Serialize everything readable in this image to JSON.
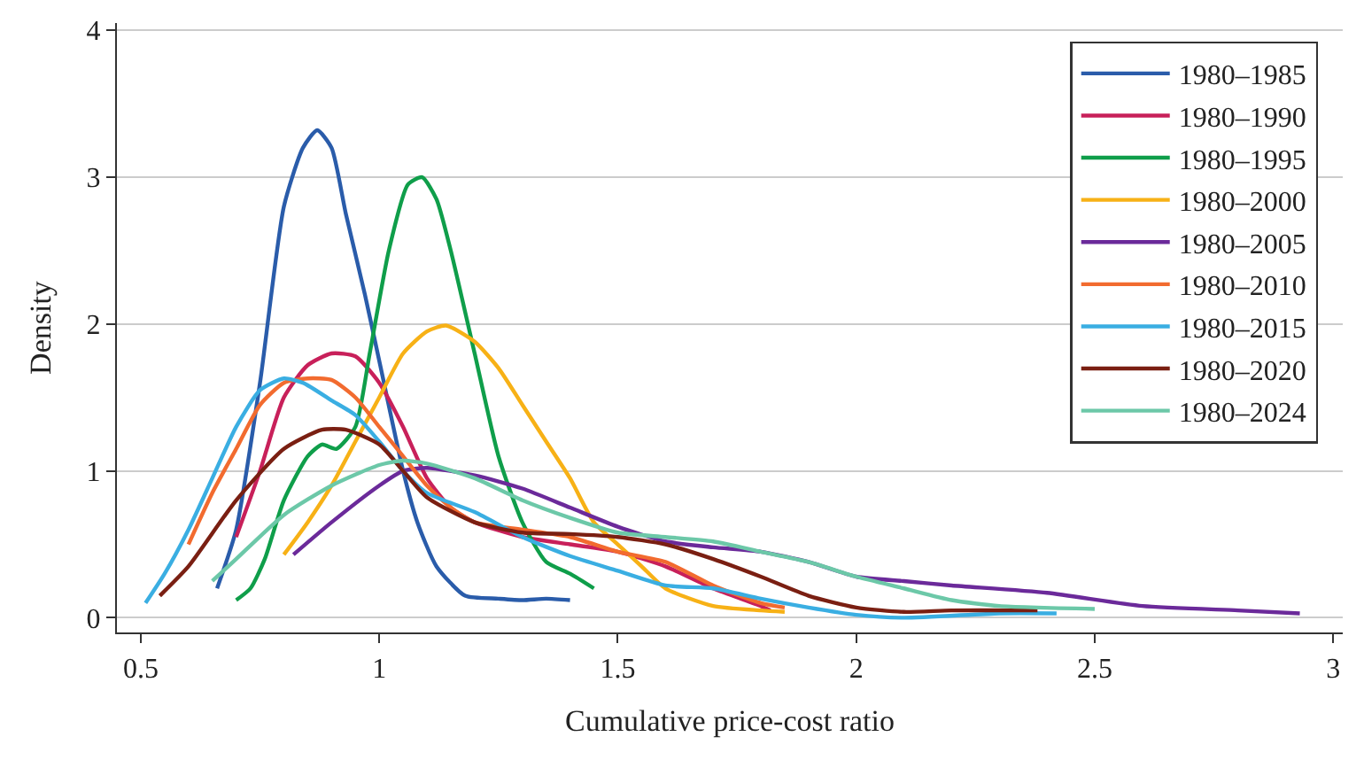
{
  "chart_data": {
    "type": "line",
    "xlabel": "Cumulative price-cost ratio",
    "ylabel": "Density",
    "xlim": [
      0.45,
      3.02
    ],
    "xticks": [
      0.5,
      1,
      1.5,
      2,
      2.5,
      3
    ],
    "ylim": [
      -0.1,
      4.05
    ],
    "yticks": [
      0,
      1,
      2,
      3,
      4
    ],
    "grid": "y",
    "legend": "top right",
    "marker": "none",
    "line_style": "solid",
    "series": [
      {
        "name": "1980–1985",
        "color": "#2a5caa",
        "x": [
          0.66,
          0.7,
          0.75,
          0.8,
          0.84,
          0.87,
          0.9,
          0.93,
          0.97,
          1.0,
          1.05,
          1.08,
          1.12,
          1.18,
          1.25,
          1.3,
          1.35,
          1.4
        ],
        "values": [
          0.2,
          0.6,
          1.6,
          2.8,
          3.2,
          3.32,
          3.2,
          2.75,
          2.2,
          1.75,
          1.0,
          0.65,
          0.35,
          0.15,
          0.13,
          0.12,
          0.13,
          0.12
        ]
      },
      {
        "name": "1980–1990",
        "color": "#c8205a",
        "x": [
          0.7,
          0.75,
          0.8,
          0.85,
          0.9,
          0.95,
          1.0,
          1.05,
          1.1,
          1.15,
          1.2,
          1.3,
          1.4,
          1.5,
          1.6,
          1.7,
          1.8,
          1.82
        ],
        "values": [
          0.55,
          1.0,
          1.5,
          1.72,
          1.8,
          1.78,
          1.6,
          1.3,
          0.95,
          0.75,
          0.65,
          0.55,
          0.5,
          0.45,
          0.35,
          0.2,
          0.08,
          0.05
        ]
      },
      {
        "name": "1980–1995",
        "color": "#0f9e4a",
        "x": [
          0.7,
          0.73,
          0.76,
          0.8,
          0.85,
          0.88,
          0.91,
          0.95,
          0.98,
          1.02,
          1.06,
          1.09,
          1.12,
          1.15,
          1.2,
          1.25,
          1.3,
          1.35,
          1.4,
          1.45
        ],
        "values": [
          0.12,
          0.2,
          0.4,
          0.8,
          1.1,
          1.18,
          1.15,
          1.3,
          1.8,
          2.5,
          2.95,
          3.0,
          2.85,
          2.5,
          1.8,
          1.1,
          0.65,
          0.38,
          0.3,
          0.2
        ]
      },
      {
        "name": "1980–2000",
        "color": "#f7b116",
        "x": [
          0.8,
          0.85,
          0.9,
          0.95,
          1.0,
          1.05,
          1.1,
          1.14,
          1.2,
          1.25,
          1.3,
          1.35,
          1.4,
          1.45,
          1.5,
          1.55,
          1.6,
          1.7,
          1.8,
          1.85
        ],
        "values": [
          0.43,
          0.65,
          0.9,
          1.2,
          1.5,
          1.8,
          1.95,
          1.99,
          1.88,
          1.7,
          1.45,
          1.2,
          0.95,
          0.65,
          0.5,
          0.35,
          0.2,
          0.08,
          0.05,
          0.04
        ]
      },
      {
        "name": "1980–2005",
        "color": "#6b2a9a",
        "x": [
          0.82,
          0.9,
          1.0,
          1.05,
          1.1,
          1.2,
          1.3,
          1.4,
          1.5,
          1.6,
          1.7,
          1.8,
          1.9,
          2.0,
          2.1,
          2.2,
          2.4,
          2.6,
          2.8,
          2.93
        ],
        "values": [
          0.43,
          0.65,
          0.9,
          1.0,
          1.02,
          0.97,
          0.88,
          0.75,
          0.62,
          0.52,
          0.48,
          0.45,
          0.38,
          0.28,
          0.25,
          0.22,
          0.17,
          0.08,
          0.05,
          0.03
        ]
      },
      {
        "name": "1980–2010",
        "color": "#f26b2f",
        "x": [
          0.6,
          0.65,
          0.7,
          0.75,
          0.8,
          0.85,
          0.9,
          0.95,
          1.0,
          1.05,
          1.1,
          1.15,
          1.2,
          1.3,
          1.4,
          1.5,
          1.6,
          1.7,
          1.8,
          1.85
        ],
        "values": [
          0.5,
          0.85,
          1.15,
          1.45,
          1.6,
          1.63,
          1.62,
          1.5,
          1.3,
          1.1,
          0.9,
          0.75,
          0.65,
          0.6,
          0.55,
          0.45,
          0.38,
          0.22,
          0.1,
          0.07
        ]
      },
      {
        "name": "1980–2015",
        "color": "#3aaee2",
        "x": [
          0.51,
          0.55,
          0.6,
          0.65,
          0.7,
          0.75,
          0.8,
          0.84,
          0.9,
          0.95,
          1.0,
          1.05,
          1.1,
          1.2,
          1.3,
          1.4,
          1.5,
          1.6,
          1.7,
          1.8,
          1.9,
          2.0,
          2.1,
          2.3,
          2.42
        ],
        "values": [
          0.1,
          0.3,
          0.6,
          0.95,
          1.3,
          1.55,
          1.63,
          1.6,
          1.48,
          1.38,
          1.2,
          1.0,
          0.85,
          0.72,
          0.55,
          0.42,
          0.32,
          0.22,
          0.2,
          0.13,
          0.07,
          0.02,
          0.0,
          0.03,
          0.03
        ]
      },
      {
        "name": "1980–2020",
        "color": "#7a1f12",
        "x": [
          0.54,
          0.6,
          0.7,
          0.8,
          0.88,
          0.93,
          1.0,
          1.05,
          1.1,
          1.2,
          1.3,
          1.4,
          1.5,
          1.6,
          1.7,
          1.8,
          1.9,
          2.0,
          2.1,
          2.2,
          2.38
        ],
        "values": [
          0.15,
          0.35,
          0.8,
          1.15,
          1.28,
          1.28,
          1.18,
          1.0,
          0.82,
          0.65,
          0.58,
          0.57,
          0.55,
          0.5,
          0.4,
          0.28,
          0.15,
          0.07,
          0.04,
          0.05,
          0.05
        ]
      },
      {
        "name": "1980–2024",
        "color": "#6cc8a8",
        "x": [
          0.65,
          0.7,
          0.8,
          0.9,
          1.0,
          1.05,
          1.1,
          1.2,
          1.3,
          1.4,
          1.5,
          1.6,
          1.7,
          1.8,
          1.9,
          2.0,
          2.1,
          2.2,
          2.3,
          2.5
        ],
        "values": [
          0.25,
          0.4,
          0.7,
          0.9,
          1.04,
          1.07,
          1.05,
          0.95,
          0.8,
          0.68,
          0.58,
          0.55,
          0.52,
          0.45,
          0.38,
          0.28,
          0.2,
          0.12,
          0.08,
          0.06
        ]
      }
    ]
  }
}
